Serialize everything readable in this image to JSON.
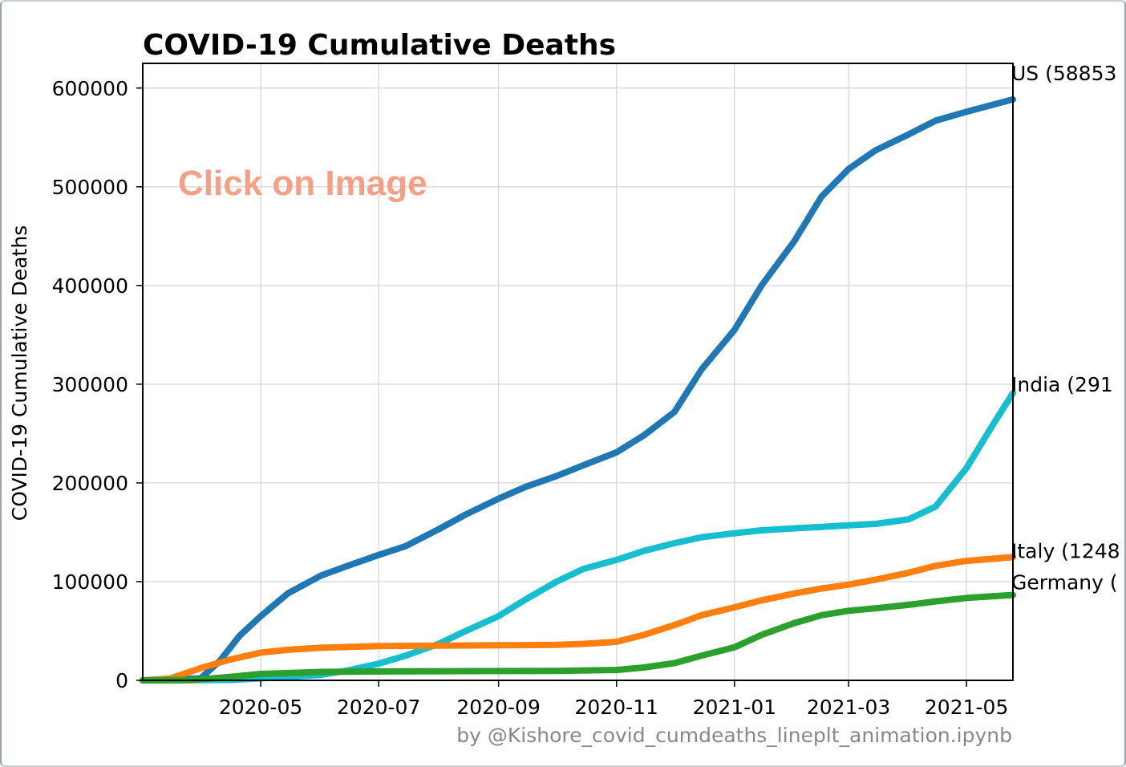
{
  "chart_data": {
    "type": "line",
    "title": "COVID-19 Cumulative Deaths",
    "xlabel": "",
    "ylabel": "COVID-19 Cumulative Deaths",
    "overlay_text": "Click on Image",
    "credit": "by @Kishore_covid_cumdeaths_lineplt_animation.ipynb",
    "x_tick_labels": [
      "2020-05",
      "2020-07",
      "2020-09",
      "2020-11",
      "2021-01",
      "2021-03",
      "2021-05"
    ],
    "x_ticks": [
      "2020-05-01",
      "2020-07-01",
      "2020-09-01",
      "2020-11-01",
      "2021-01-01",
      "2021-03-01",
      "2021-05-01"
    ],
    "y_tick_labels": [
      "0",
      "100000",
      "200000",
      "300000",
      "400000",
      "500000",
      "600000"
    ],
    "y_ticks": [
      0,
      100000,
      200000,
      300000,
      400000,
      500000,
      600000
    ],
    "xlim": [
      "2020-03-01",
      "2021-05-25"
    ],
    "ylim": [
      0,
      625000
    ],
    "grid": true,
    "legend": "none",
    "series": [
      {
        "name": "US",
        "end_label": "US (58853",
        "color": "#1f77b4",
        "points": [
          [
            "2020-03-01",
            0
          ],
          [
            "2020-03-31",
            2000
          ],
          [
            "2020-04-10",
            20000
          ],
          [
            "2020-04-20",
            45000
          ],
          [
            "2020-05-01",
            65000
          ],
          [
            "2020-05-15",
            88000
          ],
          [
            "2020-06-01",
            106000
          ],
          [
            "2020-06-15",
            116000
          ],
          [
            "2020-07-01",
            127000
          ],
          [
            "2020-07-15",
            136000
          ],
          [
            "2020-08-01",
            153000
          ],
          [
            "2020-08-15",
            168000
          ],
          [
            "2020-09-01",
            184000
          ],
          [
            "2020-09-15",
            196000
          ],
          [
            "2020-10-01",
            207000
          ],
          [
            "2020-10-15",
            218000
          ],
          [
            "2020-11-01",
            231000
          ],
          [
            "2020-11-15",
            248000
          ],
          [
            "2020-12-01",
            272000
          ],
          [
            "2020-12-15",
            315000
          ],
          [
            "2021-01-01",
            355000
          ],
          [
            "2021-01-15",
            400000
          ],
          [
            "2021-02-01",
            445000
          ],
          [
            "2021-02-15",
            490000
          ],
          [
            "2021-03-01",
            518000
          ],
          [
            "2021-03-15",
            537000
          ],
          [
            "2021-04-01",
            553000
          ],
          [
            "2021-04-15",
            567000
          ],
          [
            "2021-05-01",
            576000
          ],
          [
            "2021-05-25",
            588530
          ]
        ]
      },
      {
        "name": "India",
        "end_label": "India (291",
        "color": "#17becf",
        "points": [
          [
            "2020-03-01",
            0
          ],
          [
            "2020-04-15",
            400
          ],
          [
            "2020-05-15",
            3500
          ],
          [
            "2020-06-01",
            5500
          ],
          [
            "2020-06-15",
            10000
          ],
          [
            "2020-07-01",
            17000
          ],
          [
            "2020-07-15",
            25000
          ],
          [
            "2020-08-01",
            37000
          ],
          [
            "2020-08-15",
            50000
          ],
          [
            "2020-09-01",
            65000
          ],
          [
            "2020-09-15",
            82000
          ],
          [
            "2020-10-01",
            100000
          ],
          [
            "2020-10-15",
            113000
          ],
          [
            "2020-11-01",
            122000
          ],
          [
            "2020-11-15",
            131000
          ],
          [
            "2020-12-01",
            139000
          ],
          [
            "2020-12-15",
            145000
          ],
          [
            "2021-01-01",
            149000
          ],
          [
            "2021-01-15",
            152000
          ],
          [
            "2021-02-01",
            154000
          ],
          [
            "2021-02-15",
            155500
          ],
          [
            "2021-03-01",
            157000
          ],
          [
            "2021-03-15",
            158500
          ],
          [
            "2021-04-01",
            163000
          ],
          [
            "2021-04-15",
            176000
          ],
          [
            "2021-05-01",
            215000
          ],
          [
            "2021-05-15",
            260000
          ],
          [
            "2021-05-25",
            291000
          ]
        ]
      },
      {
        "name": "Italy",
        "end_label": "Italy (1248",
        "color": "#ff7f0e",
        "points": [
          [
            "2020-03-01",
            30
          ],
          [
            "2020-03-15",
            1800
          ],
          [
            "2020-04-01",
            13000
          ],
          [
            "2020-04-15",
            21000
          ],
          [
            "2020-05-01",
            28000
          ],
          [
            "2020-05-15",
            31000
          ],
          [
            "2020-06-01",
            33000
          ],
          [
            "2020-07-01",
            34800
          ],
          [
            "2020-08-01",
            35200
          ],
          [
            "2020-09-01",
            35500
          ],
          [
            "2020-10-01",
            36000
          ],
          [
            "2020-10-15",
            37000
          ],
          [
            "2020-11-01",
            39000
          ],
          [
            "2020-11-15",
            46000
          ],
          [
            "2020-12-01",
            56000
          ],
          [
            "2020-12-15",
            66000
          ],
          [
            "2021-01-01",
            74000
          ],
          [
            "2021-01-15",
            81000
          ],
          [
            "2021-02-01",
            88000
          ],
          [
            "2021-02-15",
            93000
          ],
          [
            "2021-03-01",
            97000
          ],
          [
            "2021-03-15",
            102000
          ],
          [
            "2021-04-01",
            109000
          ],
          [
            "2021-04-15",
            116000
          ],
          [
            "2021-05-01",
            121000
          ],
          [
            "2021-05-25",
            124800
          ]
        ]
      },
      {
        "name": "Germany",
        "end_label": "Germany (",
        "color": "#2ca02c",
        "points": [
          [
            "2020-03-01",
            0
          ],
          [
            "2020-03-25",
            200
          ],
          [
            "2020-04-15",
            3500
          ],
          [
            "2020-05-01",
            6500
          ],
          [
            "2020-06-01",
            8500
          ],
          [
            "2020-07-01",
            9000
          ],
          [
            "2020-09-01",
            9400
          ],
          [
            "2020-10-01",
            9600
          ],
          [
            "2020-11-01",
            10500
          ],
          [
            "2020-11-15",
            13000
          ],
          [
            "2020-12-01",
            17500
          ],
          [
            "2020-12-15",
            25000
          ],
          [
            "2021-01-01",
            33500
          ],
          [
            "2021-01-15",
            46000
          ],
          [
            "2021-02-01",
            58000
          ],
          [
            "2021-02-15",
            66000
          ],
          [
            "2021-03-01",
            70500
          ],
          [
            "2021-03-15",
            73000
          ],
          [
            "2021-04-01",
            76500
          ],
          [
            "2021-04-15",
            80000
          ],
          [
            "2021-05-01",
            83500
          ],
          [
            "2021-05-25",
            86500
          ]
        ]
      }
    ]
  }
}
